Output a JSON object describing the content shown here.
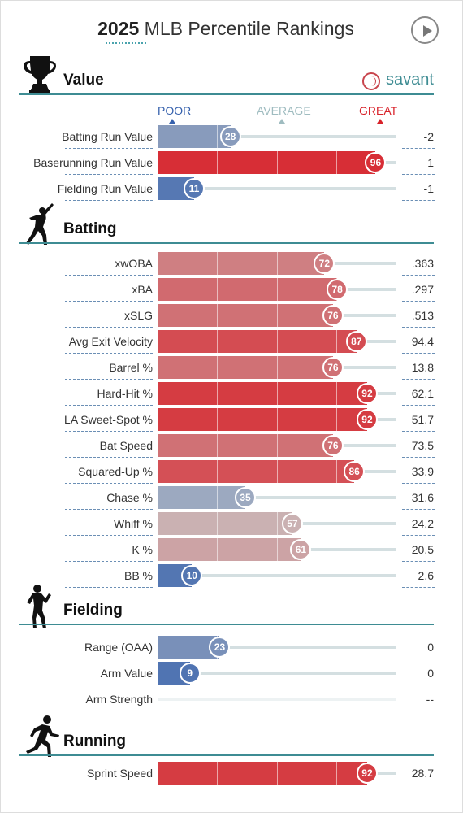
{
  "header": {
    "title_year": "2025",
    "title_rest": " MLB Percentile Rankings",
    "brand": "savant"
  },
  "legend": {
    "poor": "POOR",
    "average": "AVERAGE",
    "great": "GREAT"
  },
  "colors": {
    "poor": "#3661ad",
    "average": "#b2b2b2",
    "great": "#d82129",
    "accent": "#3e8c93"
  },
  "chart_data": {
    "type": "bar",
    "title": "2025 MLB Percentile Rankings",
    "xlim": [
      0,
      100
    ],
    "sections": [
      {
        "name": "Value",
        "icon": "trophy-icon",
        "metrics": [
          {
            "label": "Batting Run Value",
            "percentile": 28,
            "value": "-2"
          },
          {
            "label": "Baserunning Run Value",
            "percentile": 96,
            "value": "1"
          },
          {
            "label": "Fielding Run Value",
            "percentile": 11,
            "value": "-1"
          }
        ]
      },
      {
        "name": "Batting",
        "icon": "batter-icon",
        "metrics": [
          {
            "label": "xwOBA",
            "percentile": 72,
            "value": ".363"
          },
          {
            "label": "xBA",
            "percentile": 78,
            "value": ".297"
          },
          {
            "label": "xSLG",
            "percentile": 76,
            "value": ".513"
          },
          {
            "label": "Avg Exit Velocity",
            "percentile": 87,
            "value": "94.4"
          },
          {
            "label": "Barrel %",
            "percentile": 76,
            "value": "13.8"
          },
          {
            "label": "Hard-Hit %",
            "percentile": 92,
            "value": "62.1"
          },
          {
            "label": "LA Sweet-Spot %",
            "percentile": 92,
            "value": "51.7"
          },
          {
            "label": "Bat Speed",
            "percentile": 76,
            "value": "73.5"
          },
          {
            "label": "Squared-Up %",
            "percentile": 86,
            "value": "33.9"
          },
          {
            "label": "Chase %",
            "percentile": 35,
            "value": "31.6"
          },
          {
            "label": "Whiff %",
            "percentile": 57,
            "value": "24.2"
          },
          {
            "label": "K %",
            "percentile": 61,
            "value": "20.5"
          },
          {
            "label": "BB %",
            "percentile": 10,
            "value": "2.6"
          }
        ]
      },
      {
        "name": "Fielding",
        "icon": "fielder-icon",
        "metrics": [
          {
            "label": "Range (OAA)",
            "percentile": 23,
            "value": "0"
          },
          {
            "label": "Arm Value",
            "percentile": 9,
            "value": "0"
          },
          {
            "label": "Arm Strength",
            "percentile": null,
            "value": "--"
          }
        ]
      },
      {
        "name": "Running",
        "icon": "runner-icon",
        "metrics": [
          {
            "label": "Sprint Speed",
            "percentile": 92,
            "value": "28.7"
          }
        ]
      }
    ]
  }
}
